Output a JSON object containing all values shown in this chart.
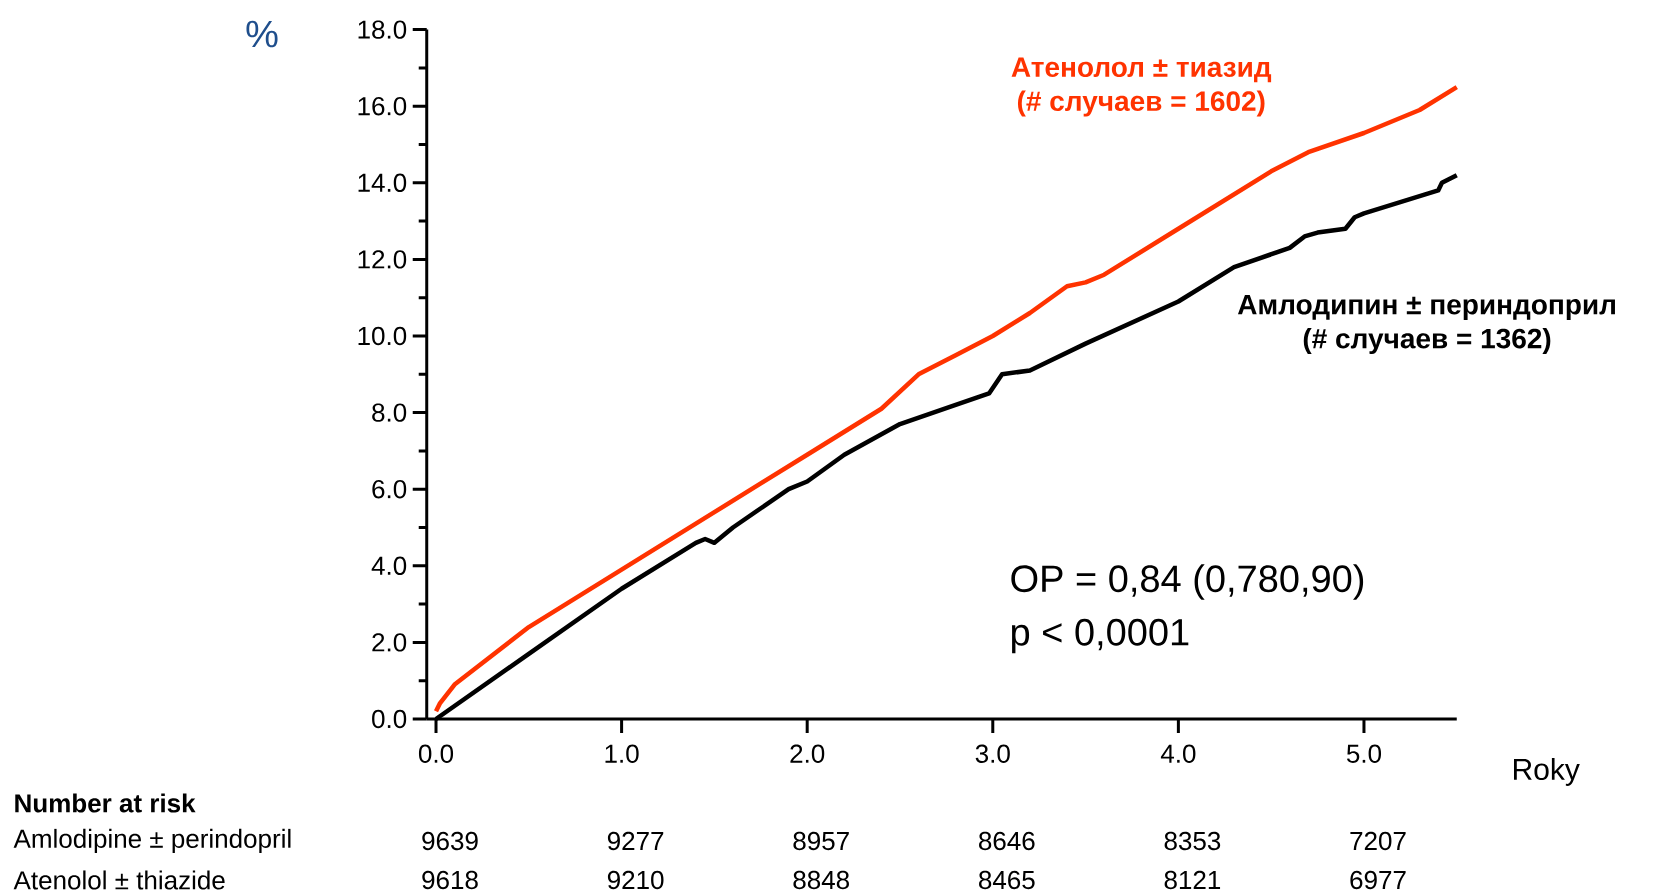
{
  "chart_data": {
    "type": "line",
    "xlabel": "Roky",
    "ylabel": "%",
    "xlim": [
      -0.05,
      5.5
    ],
    "ylim": [
      0,
      18
    ],
    "xticks": [
      {
        "value": 0,
        "label": "0.0"
      },
      {
        "value": 1,
        "label": "1.0"
      },
      {
        "value": 2,
        "label": "2.0"
      },
      {
        "value": 3,
        "label": "3.0"
      },
      {
        "value": 4,
        "label": "4.0"
      },
      {
        "value": 5,
        "label": "5.0"
      }
    ],
    "yticks": [
      {
        "value": 0,
        "label": "0.0"
      },
      {
        "value": 1,
        "label": null
      },
      {
        "value": 2,
        "label": "2.0"
      },
      {
        "value": 3,
        "label": null
      },
      {
        "value": 4,
        "label": "4.0"
      },
      {
        "value": 5,
        "label": null
      },
      {
        "value": 6,
        "label": "6.0"
      },
      {
        "value": 7,
        "label": null
      },
      {
        "value": 8,
        "label": "8.0"
      },
      {
        "value": 9,
        "label": null
      },
      {
        "value": 10,
        "label": "10.0"
      },
      {
        "value": 11,
        "label": null
      },
      {
        "value": 12,
        "label": "12.0"
      },
      {
        "value": 13,
        "label": null
      },
      {
        "value": 14,
        "label": "14.0"
      },
      {
        "value": 15,
        "label": null
      },
      {
        "value": 16,
        "label": "16.0"
      },
      {
        "value": 17,
        "label": null
      },
      {
        "value": 18,
        "label": "18.0"
      }
    ],
    "series": [
      {
        "name": "Атенолол ± тиазид",
        "color": "#ff3300",
        "x": [
          0,
          0.02,
          0.1,
          0.5,
          1.0,
          1.5,
          2.0,
          2.4,
          2.6,
          2.8,
          3.0,
          3.2,
          3.4,
          3.5,
          3.6,
          4.0,
          4.5,
          4.7,
          5.0,
          5.3,
          5.5
        ],
        "values": [
          0.2,
          0.4,
          0.9,
          2.4,
          3.9,
          5.4,
          6.9,
          8.1,
          9.0,
          9.5,
          10.0,
          10.6,
          11.3,
          11.4,
          11.6,
          12.8,
          14.3,
          14.8,
          15.3,
          15.9,
          16.5
        ]
      },
      {
        "name": "Амлодипин ± периндоприл",
        "color": "#000000",
        "x": [
          0,
          0.5,
          1.0,
          1.4,
          1.45,
          1.5,
          1.6,
          1.9,
          2.0,
          2.2,
          2.5,
          2.8,
          2.98,
          3.05,
          3.2,
          3.5,
          4.0,
          4.3,
          4.6,
          4.68,
          4.75,
          4.9,
          4.95,
          5.0,
          5.4,
          5.42,
          5.5
        ],
        "values": [
          0,
          1.7,
          3.4,
          4.6,
          4.7,
          4.6,
          5.0,
          6.0,
          6.2,
          6.9,
          7.7,
          8.2,
          8.5,
          9.0,
          9.1,
          9.8,
          10.9,
          11.8,
          12.3,
          12.6,
          12.7,
          12.8,
          13.1,
          13.2,
          13.8,
          14.0,
          14.2
        ]
      }
    ],
    "line_style": "solid",
    "annotations": [
      "(# случаев = 1602)",
      "(# случаев = 1362)",
      "OP = 0,84 (0,780,90)",
      "p < 0,0001",
      "Number at risk",
      "Amlodipine ± perindopril",
      "9639",
      "9277",
      "8957",
      "8646",
      "8353",
      "7207",
      "Atenolol ± thiazide",
      "9618",
      "9210",
      "8848",
      "8465",
      "8121",
      "6977"
    ]
  }
}
